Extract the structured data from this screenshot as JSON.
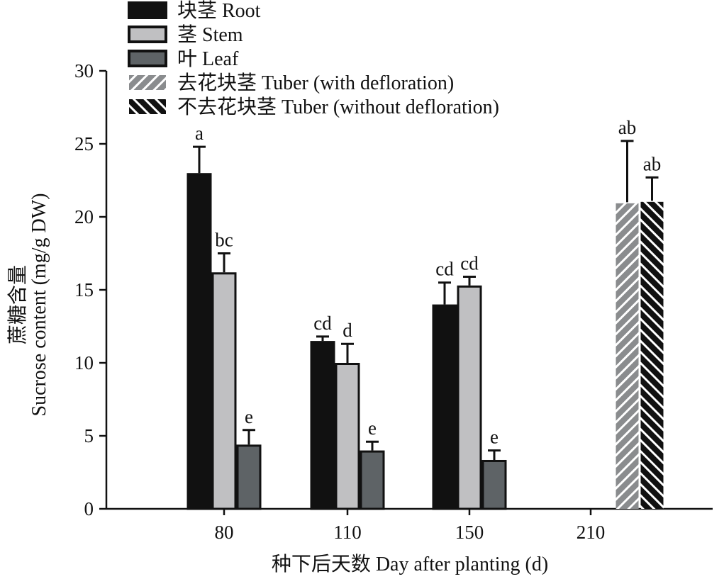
{
  "chart_data": {
    "type": "bar",
    "title": "",
    "xlabel": "种下后天数 Day after planting (d)",
    "ylabel_cn": "蔗糖含量",
    "ylabel": "Sucrose content (mg/g DW)",
    "ylim": [
      0,
      30
    ],
    "yticks": [
      0,
      5,
      10,
      15,
      20,
      25,
      30
    ],
    "categories": [
      "80",
      "110",
      "150",
      "210"
    ],
    "legend_placement": "top-left",
    "series": [
      {
        "name": "块茎 Root",
        "color": "#111111",
        "values": [
          23.0,
          11.5,
          14.0,
          null
        ],
        "errors": [
          1.8,
          0.3,
          1.5,
          null
        ],
        "letters": [
          "a",
          "cd",
          "cd",
          null
        ]
      },
      {
        "name": "茎 Stem",
        "color": "#c0c0c2",
        "values": [
          16.2,
          10.0,
          15.3,
          null
        ],
        "errors": [
          1.3,
          1.3,
          0.6,
          null
        ],
        "letters": [
          "bc",
          "d",
          "cd",
          null
        ]
      },
      {
        "name": "叶 Leaf",
        "color": "#5e6366",
        "values": [
          4.4,
          4.0,
          3.35,
          null
        ],
        "errors": [
          1.0,
          0.6,
          0.65,
          null
        ],
        "letters": [
          "e",
          "e",
          "e",
          null
        ]
      },
      {
        "name": "去花块茎 Tuber (with defloration)",
        "color": "#8a8c8e",
        "values": [
          null,
          null,
          null,
          21.0
        ],
        "errors": [
          null,
          null,
          null,
          4.2
        ],
        "letters": [
          null,
          null,
          null,
          "ab"
        ]
      },
      {
        "name": "不去花块茎 Tuber (without defloration)",
        "color": "#111111",
        "values": [
          null,
          null,
          null,
          21.1
        ],
        "errors": [
          null,
          null,
          null,
          1.6
        ],
        "letters": [
          null,
          null,
          null,
          "ab"
        ]
      }
    ]
  }
}
